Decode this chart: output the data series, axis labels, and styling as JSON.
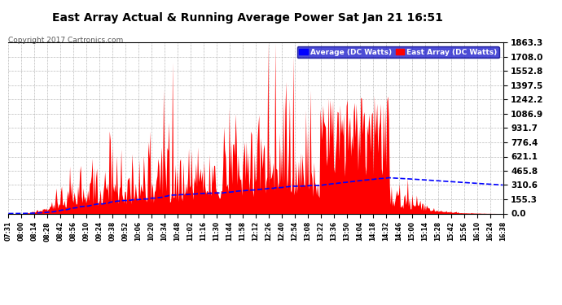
{
  "title": "East Array Actual & Running Average Power Sat Jan 21 16:51",
  "copyright": "Copyright 2017 Cartronics.com",
  "ylabel_right_ticks": [
    0.0,
    155.3,
    310.6,
    465.8,
    621.1,
    776.4,
    931.7,
    1086.9,
    1242.2,
    1397.5,
    1552.8,
    1708.0,
    1863.3
  ],
  "ymax": 1863.3,
  "ymin": 0.0,
  "legend_avg_label": "Average (DC Watts)",
  "legend_east_label": "East Array (DC Watts)",
  "avg_color": "#0000ff",
  "east_color": "#ff0000",
  "background_color": "#ffffff",
  "plot_background": "#ffffff",
  "xtick_labels": [
    "07:31",
    "08:00",
    "08:14",
    "08:28",
    "08:42",
    "08:56",
    "09:10",
    "09:24",
    "09:38",
    "09:52",
    "10:06",
    "10:20",
    "10:34",
    "10:48",
    "11:02",
    "11:16",
    "11:30",
    "11:44",
    "11:58",
    "12:12",
    "12:26",
    "12:40",
    "12:54",
    "13:08",
    "13:22",
    "13:36",
    "13:50",
    "14:04",
    "14:18",
    "14:32",
    "14:46",
    "15:00",
    "15:14",
    "15:28",
    "15:42",
    "15:56",
    "16:10",
    "16:24",
    "16:38"
  ]
}
